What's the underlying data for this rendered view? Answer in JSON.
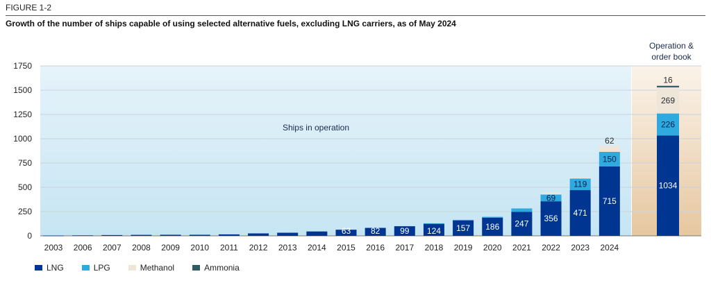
{
  "figure": {
    "label": "FIGURE 1-2",
    "title": "Growth of the number of ships capable of using selected alternative fuels, excluding LNG carriers, as of May 2024"
  },
  "colors": {
    "LNG": "#003591",
    "LPG": "#2eaae1",
    "Methanol": "#eee6d9",
    "Ammonia": "#2f5b64",
    "operation_bg_top": "#e6f3fa",
    "operation_bg_bottom": "#c6e5f3",
    "orderbook_bg_top": "#fbf3ea",
    "orderbook_bg_bottom": "#e6c7a0"
  },
  "chart_data": {
    "type": "bar",
    "stacked": true,
    "categories": [
      "2003",
      "2006",
      "2007",
      "2008",
      "2009",
      "2010",
      "2011",
      "2012",
      "2013",
      "2014",
      "2015",
      "2016",
      "2017",
      "2018",
      "2019",
      "2020",
      "2021",
      "2022",
      "2023",
      "2024",
      "Operation & order book"
    ],
    "series": [
      {
        "name": "LNG",
        "values": [
          3,
          5,
          8,
          10,
          11,
          11,
          15,
          25,
          32,
          45,
          63,
          82,
          99,
          124,
          157,
          186,
          247,
          356,
          471,
          715,
          1034
        ]
      },
      {
        "name": "LPG",
        "values": [
          0,
          0,
          0,
          0,
          0,
          0,
          0,
          0,
          0,
          0,
          0,
          0,
          0,
          5,
          8,
          10,
          35,
          69,
          119,
          150,
          226
        ]
      },
      {
        "name": "Methanol",
        "values": [
          0,
          0,
          0,
          0,
          0,
          0,
          0,
          0,
          0,
          0,
          0,
          0,
          0,
          0,
          0,
          0,
          0,
          20,
          10,
          62,
          269
        ]
      },
      {
        "name": "Ammonia",
        "values": [
          0,
          0,
          0,
          0,
          0,
          0,
          0,
          0,
          0,
          0,
          0,
          0,
          0,
          0,
          0,
          0,
          0,
          0,
          0,
          0,
          16
        ]
      }
    ],
    "value_labels": {
      "LNG": [
        "",
        "",
        "",
        "",
        "",
        "",
        "",
        "",
        "",
        "",
        "63",
        "82",
        "99",
        "124",
        "157",
        "186",
        "247",
        "356",
        "471",
        "715",
        "1034"
      ],
      "LPG": [
        "",
        "",
        "",
        "",
        "",
        "",
        "",
        "",
        "",
        "",
        "",
        "",
        "",
        "",
        "",
        "",
        "",
        "69",
        "119",
        "150",
        "226"
      ],
      "Methanol": [
        "",
        "",
        "",
        "",
        "",
        "",
        "",
        "",
        "",
        "",
        "",
        "",
        "",
        "",
        "",
        "",
        "",
        "",
        "",
        "62",
        "269"
      ],
      "Ammonia": [
        "",
        "",
        "",
        "",
        "",
        "",
        "",
        "",
        "",
        "",
        "",
        "",
        "",
        "",
        "",
        "",
        "",
        "",
        "",
        "",
        "16"
      ]
    },
    "x_tick_labels": [
      "2003",
      "2006",
      "2007",
      "2008",
      "2009",
      "2010",
      "2011",
      "2012",
      "2013",
      "2014",
      "2015",
      "2016",
      "2017",
      "2018",
      "2019",
      "2020",
      "2021",
      "2022",
      "2023",
      "2024",
      ""
    ],
    "yticks": [
      0,
      250,
      500,
      750,
      1000,
      1250,
      1500,
      1750
    ],
    "ylim": [
      0,
      1750
    ],
    "grid": true,
    "legend_position": "bottom-left",
    "annotations": {
      "operation": "Ships in operation",
      "orderbook_line1": "Operation &",
      "orderbook_line2": "order book"
    }
  },
  "legend": [
    {
      "name": "LNG",
      "color": "#003591"
    },
    {
      "name": "LPG",
      "color": "#2eaae1"
    },
    {
      "name": "Methanol",
      "color": "#eee6d9"
    },
    {
      "name": "Ammonia",
      "color": "#2f5b64"
    }
  ]
}
